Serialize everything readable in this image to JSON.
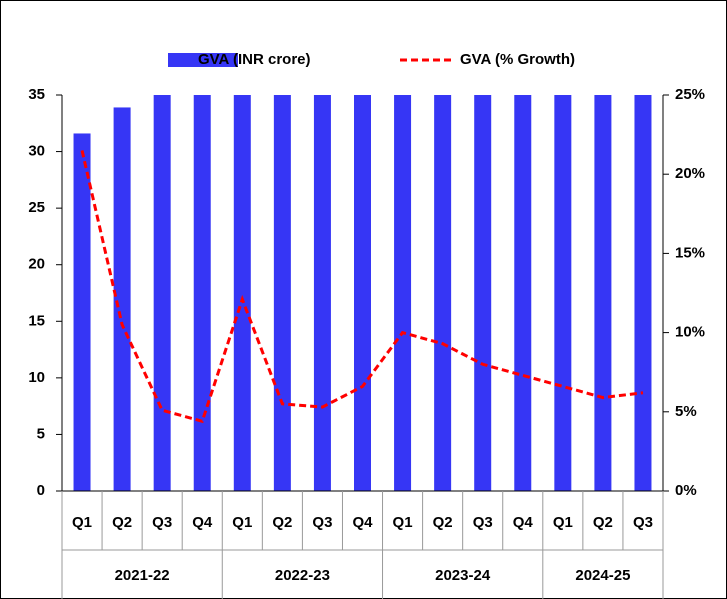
{
  "chart_data": {
    "type": "bar-line",
    "categories": [
      "Q1",
      "Q2",
      "Q3",
      "Q4",
      "Q1",
      "Q2",
      "Q3",
      "Q4",
      "Q1",
      "Q2",
      "Q3",
      "Q4",
      "Q1",
      "Q2",
      "Q3"
    ],
    "groups": [
      {
        "label": "2021-22",
        "span": 4
      },
      {
        "label": "2022-23",
        "span": 4
      },
      {
        "label": "2023-24",
        "span": 4
      },
      {
        "label": "2024-25",
        "span": 3
      }
    ],
    "series": [
      {
        "name": "GVA (INR crore)",
        "type": "bar",
        "color": "#3636f5",
        "values": [
          31.6,
          33.9,
          35,
          35,
          35,
          35,
          35,
          35,
          35,
          35,
          35,
          35,
          35,
          35,
          35
        ]
      },
      {
        "name": "GVA (% Growth)",
        "type": "line",
        "axis": "y2",
        "color": "#ff0000",
        "dashed": true,
        "values": [
          21.5,
          10.5,
          5.1,
          4.4,
          12.1,
          5.5,
          5.3,
          6.6,
          10.0,
          9.3,
          8.0,
          7.3,
          6.6,
          5.9,
          6.2
        ]
      }
    ],
    "ylim": [
      0,
      35
    ],
    "yticks": [
      0,
      5,
      10,
      15,
      20,
      25,
      30,
      35
    ],
    "y2lim": [
      0,
      25
    ],
    "y2ticks": [
      {
        "value": 0,
        "label": "0%"
      },
      {
        "value": 5,
        "label": "5%"
      },
      {
        "value": 10,
        "label": "10%"
      },
      {
        "value": 15,
        "label": "15%"
      },
      {
        "value": 20,
        "label": "20%"
      },
      {
        "value": 25,
        "label": "25%"
      }
    ],
    "legend": "top"
  }
}
